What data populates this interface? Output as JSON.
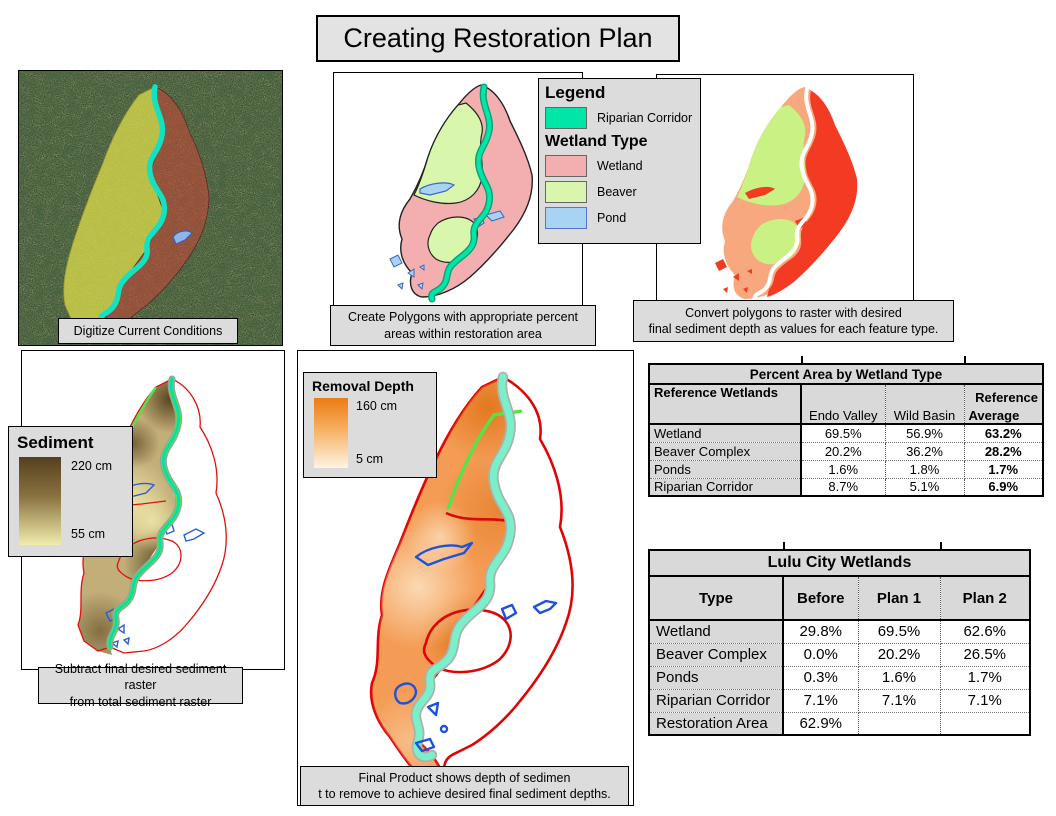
{
  "title": "Creating Restoration Plan",
  "colors": {
    "riparian": "#00E6A9",
    "wetland": "#F3AFAF",
    "beaver": "#D8F6AC",
    "pond": "#A9D3F2",
    "raster_wetland": "#F8A87E",
    "raster_deep_red": "#F23B22",
    "raster_beaver": "#C9F184",
    "box_gray": "#DCDCDC"
  },
  "captions": {
    "aerial": "Digitize Current Conditions",
    "polygons": [
      "Create Polygons with appropriate percent",
      "areas within restoration area"
    ],
    "raster": [
      "Convert polygons to raster with desired",
      "final sediment depth as values for each feature type."
    ],
    "sediment": [
      "Subtract final desired sediment raster",
      "from total sediment raster"
    ],
    "final": [
      "Final Product shows depth of sedimen",
      "t to remove to achieve desired final sediment depths."
    ]
  },
  "legend": {
    "title": "Legend",
    "riparian_label": "Riparian Corridor",
    "group_title": "Wetland Type",
    "items": [
      {
        "label": "Wetland",
        "color": "#F3AFAF"
      },
      {
        "label": "Beaver",
        "color": "#D8F6AC"
      },
      {
        "label": "Pond",
        "color": "#A9D3F2"
      }
    ]
  },
  "sediment_legend": {
    "title": "Sediment",
    "max": "220 cm",
    "min": "55 cm"
  },
  "removal_legend": {
    "title": "Removal Depth",
    "max": "160 cm",
    "min": "5 cm"
  },
  "percent_table": {
    "title": "Percent Area by Wetland Type",
    "row_header": "Reference Wetlands",
    "col_super": "Reference",
    "columns": [
      "Endo Valley",
      "Wild Basin",
      "Average"
    ],
    "rows": [
      {
        "label": "Wetland",
        "values": [
          "69.5%",
          "56.9%",
          "63.2%"
        ]
      },
      {
        "label": "Beaver Complex",
        "values": [
          "20.2%",
          "36.2%",
          "28.2%"
        ]
      },
      {
        "label": "Ponds",
        "values": [
          "1.6%",
          "1.8%",
          "1.7%"
        ]
      },
      {
        "label": "Riparian Corridor",
        "values": [
          "8.7%",
          "5.1%",
          "6.9%"
        ]
      }
    ]
  },
  "lulu_table": {
    "title": "Lulu City Wetlands",
    "columns": [
      "Type",
      "Before",
      "Plan 1",
      "Plan 2"
    ],
    "rows": [
      {
        "label": "Wetland",
        "values": [
          "29.8%",
          "69.5%",
          "62.6%"
        ]
      },
      {
        "label": "Beaver Complex",
        "values": [
          "0.0%",
          "20.2%",
          "26.5%"
        ]
      },
      {
        "label": "Ponds",
        "values": [
          "0.3%",
          "1.6%",
          "1.7%"
        ]
      },
      {
        "label": "Riparian Corridor",
        "values": [
          "7.1%",
          "7.1%",
          "7.1%"
        ]
      },
      {
        "label": "Restoration Area",
        "values": [
          "62.9%",
          "",
          ""
        ]
      }
    ]
  }
}
